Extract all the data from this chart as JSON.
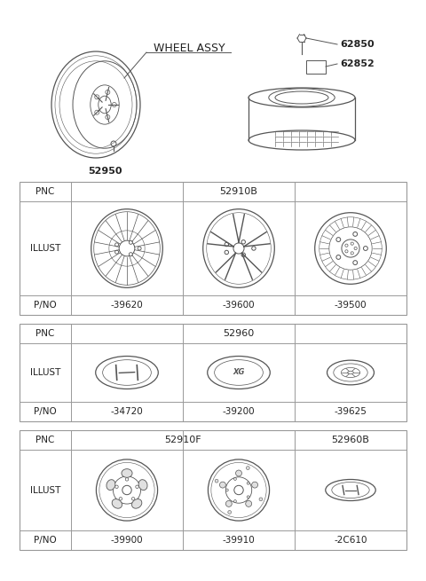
{
  "bg_color": "#ffffff",
  "line_color": "#555555",
  "text_color": "#222222",
  "table_border_color": "#999999",
  "top_section": {
    "wheel_assy_label": "WHEEL ASSY",
    "part_52950": "52950",
    "part_62850": "62850",
    "part_62852": "62852"
  },
  "table1": {
    "pnc": "52910B",
    "pnc_label": "PNC",
    "illust_label": "ILLUST",
    "pno_label": "P/NO",
    "parts": [
      "-39620",
      "-39600",
      "-39500"
    ]
  },
  "table2": {
    "pnc": "52960",
    "pnc_label": "PNC",
    "illust_label": "ILLUST",
    "pno_label": "P/NO",
    "parts": [
      "-34720",
      "-39200",
      "-39625"
    ]
  },
  "table3": {
    "pnc1": "52910F",
    "pnc2": "52960B",
    "pnc_label": "PNC",
    "illust_label": "ILLUST",
    "pno_label": "P/NO",
    "parts": [
      "-39900",
      "-39910",
      "-2C610"
    ]
  }
}
